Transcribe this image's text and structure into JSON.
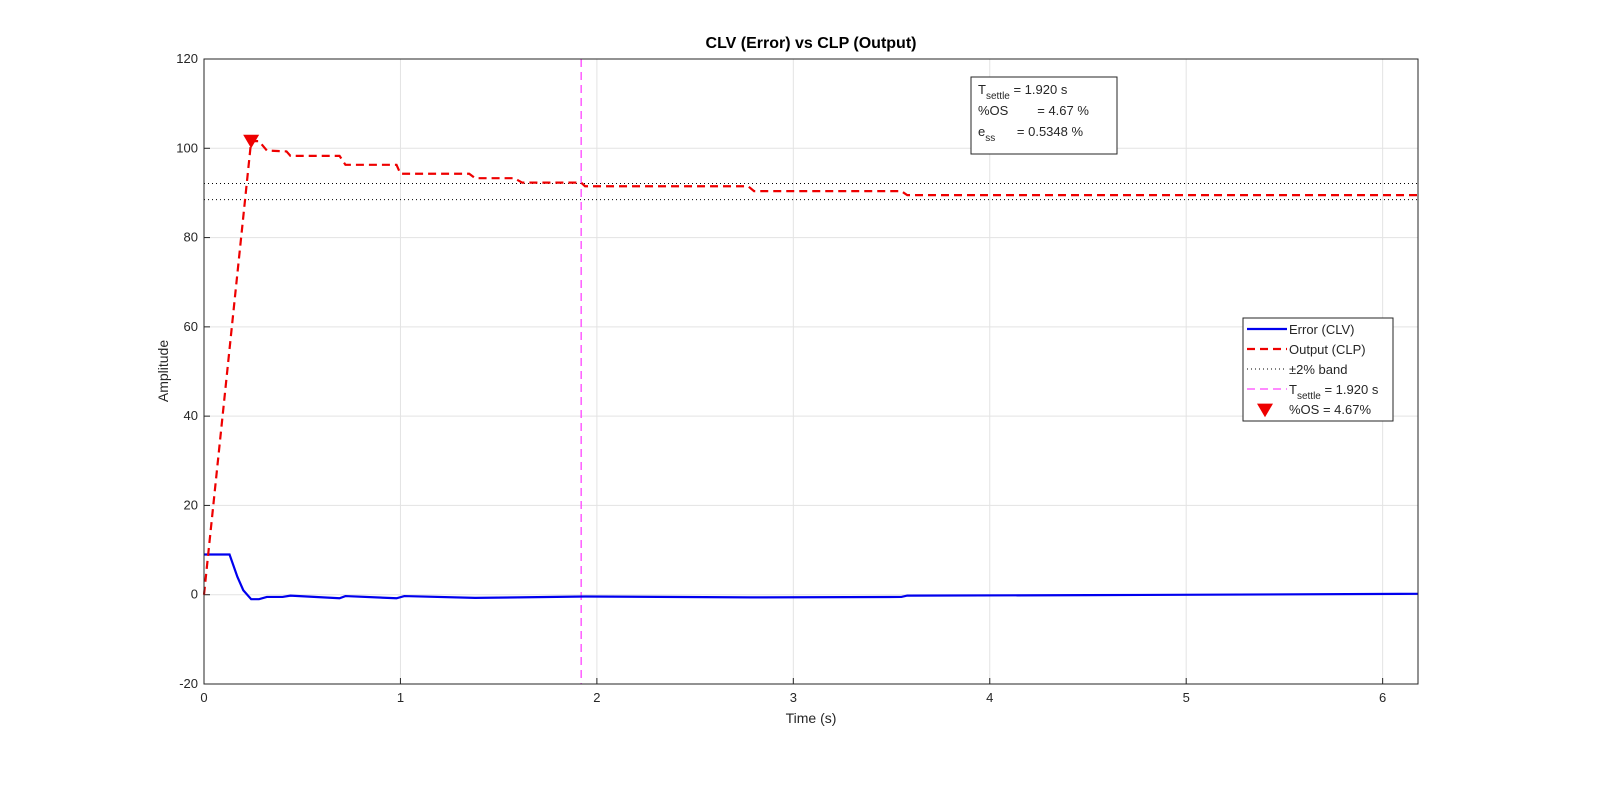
{
  "chart_data": {
    "type": "line",
    "title": "CLV (Error) vs CLP (Output)",
    "x_label": "Time (s)",
    "y_label": "Amplitude",
    "xlim": [
      0,
      6.18
    ],
    "ylim": [
      -20,
      120
    ],
    "xticks": [
      0,
      1,
      2,
      3,
      4,
      5,
      6
    ],
    "yticks": [
      -20,
      0,
      20,
      40,
      60,
      80,
      100,
      120
    ],
    "grid": true,
    "legend_position": "right",
    "series": [
      {
        "name": "Error (CLV)",
        "color": "#0000ee",
        "style": "solid",
        "x": [
          0,
          0.13,
          0.17,
          0.2,
          0.24,
          0.28,
          0.32,
          0.4,
          0.44,
          0.69,
          0.72,
          0.98,
          1.02,
          1.38,
          1.6,
          1.94,
          2.78,
          3.55,
          3.58,
          4.5,
          6.18
        ],
        "values": [
          9,
          9,
          4,
          1,
          -1,
          -1,
          -0.5,
          -0.5,
          -0.2,
          -0.8,
          -0.3,
          -0.8,
          -0.3,
          -0.7,
          -0.6,
          -0.4,
          -0.6,
          -0.5,
          -0.2,
          -0.1,
          0.2
        ]
      },
      {
        "name": "Output (CLP)",
        "color": "#ee0000",
        "style": "dashed",
        "x": [
          0,
          0.24,
          0.28,
          0.32,
          0.42,
          0.44,
          0.69,
          0.72,
          0.98,
          1.0,
          1.35,
          1.38,
          1.58,
          1.62,
          1.92,
          1.94,
          2.77,
          2.8,
          3.55,
          3.58,
          6.18
        ],
        "values": [
          0,
          101.6,
          101.6,
          99.5,
          99.3,
          98.3,
          98.3,
          96.3,
          96.3,
          94.3,
          94.3,
          93.3,
          93.3,
          92.3,
          92.3,
          91.5,
          91.5,
          90.4,
          90.4,
          89.5,
          89.5
        ]
      }
    ],
    "band": {
      "name": "±2% band",
      "color": "#000000",
      "lower": 88.5,
      "upper": 92.1
    },
    "settle": {
      "name": {
        "main": "T",
        "sub": "settle",
        "rest": " = 1.920 s"
      },
      "color": "#ff44ff",
      "x": 1.92
    },
    "marker": {
      "name": "%OS = 4.67%",
      "color": "#ee0000",
      "x": 0.24,
      "y": 101.6
    },
    "annotation": [
      {
        "main": "T",
        "sub": "settle",
        "rest": " = 1.920 s"
      },
      {
        "main": "%OS",
        "sub": "",
        "rest": "        = 4.67 %"
      },
      {
        "main": "e",
        "sub": "ss",
        "rest": "      = 0.5348 %"
      }
    ]
  }
}
